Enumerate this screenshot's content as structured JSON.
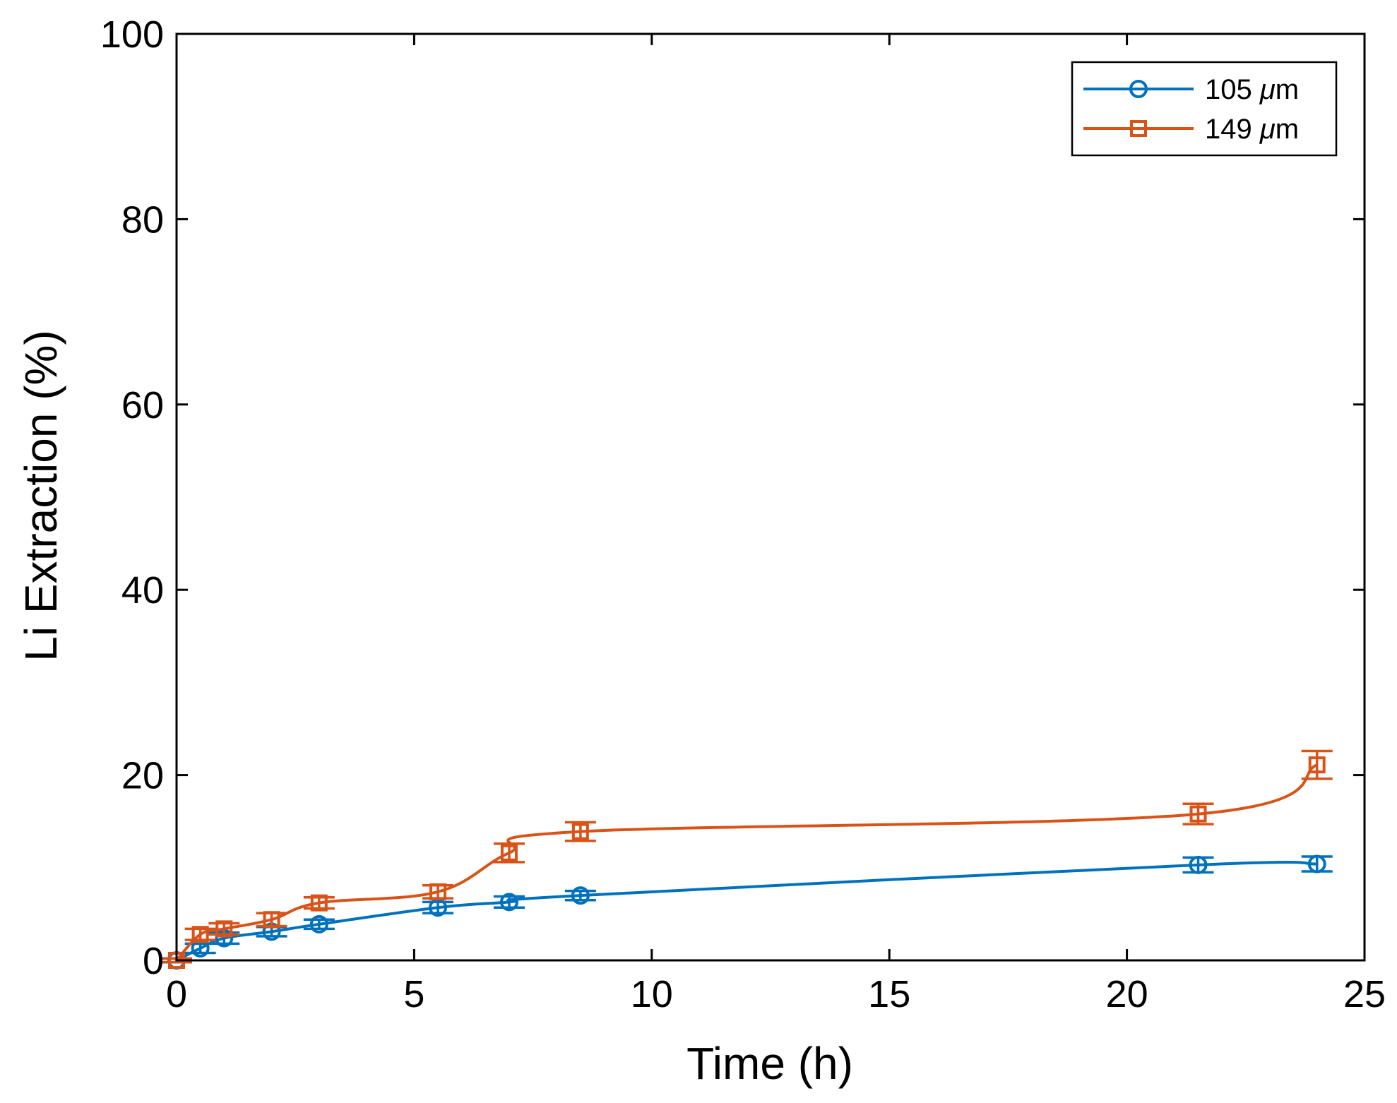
{
  "chart_data": {
    "type": "line",
    "title": "",
    "xlabel": "Time (h)",
    "ylabel": "Li Extraction (%)",
    "xlim": [
      0,
      25
    ],
    "ylim": [
      0,
      100
    ],
    "xticks": [
      0,
      5,
      10,
      15,
      20,
      25
    ],
    "yticks": [
      0,
      20,
      40,
      60,
      80,
      100
    ],
    "legend_position": "top-right",
    "series": [
      {
        "name": "105",
        "unit": "μm",
        "color": "#0072BD",
        "marker": "circle",
        "x": [
          0,
          0.5,
          1,
          2,
          3,
          5.5,
          7,
          8.5,
          21.5,
          24
        ],
        "y": [
          0,
          1.3,
          2.4,
          3.1,
          3.9,
          5.7,
          6.3,
          7.0,
          10.3,
          10.4
        ],
        "err": [
          0.2,
          0.5,
          0.6,
          0.5,
          0.5,
          0.6,
          0.6,
          0.5,
          0.8,
          0.8
        ]
      },
      {
        "name": "149",
        "unit": "μm",
        "color": "#D95319",
        "marker": "square",
        "x": [
          0,
          0.5,
          1,
          2,
          3,
          5.5,
          7,
          8.5,
          21.5,
          24
        ],
        "y": [
          0,
          2.8,
          3.4,
          4.4,
          6.2,
          7.4,
          11.6,
          13.9,
          15.8,
          21.1
        ],
        "err": [
          0.2,
          0.6,
          0.6,
          0.7,
          0.6,
          0.7,
          1.0,
          1.0,
          1.1,
          1.5
        ]
      }
    ]
  }
}
